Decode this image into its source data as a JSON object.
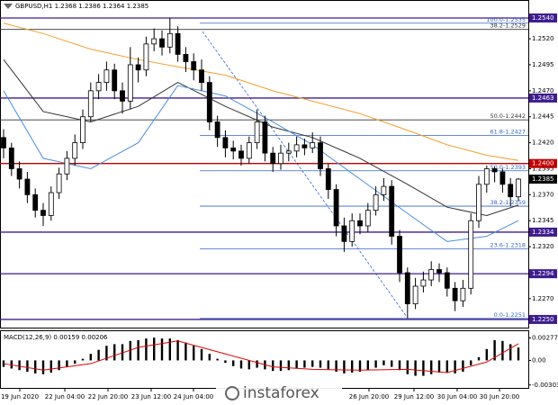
{
  "chart_data": [
    {
      "type": "candlestick",
      "title": "GBPUSD,H1  1.2368 1.2386 1.2364 1.2385",
      "open": [
        1.2425,
        1.2415,
        1.2395,
        1.2385,
        1.237,
        1.2355,
        1.235,
        1.2372,
        1.239,
        1.2405,
        1.242,
        1.2445,
        1.247,
        1.2478,
        1.249,
        1.247,
        1.246,
        1.2495,
        1.249,
        1.2515,
        1.252,
        1.2512,
        1.2525,
        1.2505,
        1.2498,
        1.249,
        1.2478,
        1.244,
        1.2425,
        1.2415,
        1.2412,
        1.2405,
        1.242,
        1.244,
        1.241,
        1.24,
        1.241,
        1.2412,
        1.2418,
        1.2415,
        1.242,
        1.2395,
        1.2375,
        1.234,
        1.2325,
        1.2345,
        1.234,
        1.2355,
        1.237,
        1.2378,
        1.233,
        1.2295,
        1.2265,
        1.2282,
        1.2288,
        1.2298,
        1.2295,
        1.228,
        1.2268,
        1.228,
        1.2345,
        1.238,
        1.2395,
        1.2392,
        1.238,
        1.2368
      ],
      "high": [
        1.2433,
        1.242,
        1.2402,
        1.2392,
        1.2376,
        1.2362,
        1.2378,
        1.2396,
        1.2412,
        1.2428,
        1.2452,
        1.2478,
        1.2486,
        1.2498,
        1.2496,
        1.2478,
        1.2512,
        1.2502,
        1.2522,
        1.253,
        1.2528,
        1.254,
        1.2532,
        1.2512,
        1.2506,
        1.25,
        1.2484,
        1.2446,
        1.2432,
        1.2422,
        1.2418,
        1.2426,
        1.2452,
        1.2446,
        1.2416,
        1.2418,
        1.242,
        1.2426,
        1.2424,
        1.243,
        1.2426,
        1.24,
        1.238,
        1.2348,
        1.2352,
        1.2352,
        1.2362,
        1.2378,
        1.2386,
        1.2384,
        1.2336,
        1.23,
        1.229,
        1.2296,
        1.2306,
        1.2304,
        1.23,
        1.2286,
        1.2288,
        1.2352,
        1.2388,
        1.2398,
        1.2397,
        1.2395,
        1.2386,
        1.2386
      ],
      "low": [
        1.2405,
        1.2388,
        1.2376,
        1.2362,
        1.2348,
        1.234,
        1.2345,
        1.2366,
        1.2384,
        1.2398,
        1.2414,
        1.244,
        1.2462,
        1.247,
        1.2462,
        1.2448,
        1.2452,
        1.2478,
        1.2484,
        1.2508,
        1.2504,
        1.2506,
        1.2498,
        1.2488,
        1.248,
        1.247,
        1.2432,
        1.2416,
        1.2406,
        1.2404,
        1.2398,
        1.24,
        1.2414,
        1.2402,
        1.2392,
        1.2394,
        1.2402,
        1.2406,
        1.2408,
        1.241,
        1.2388,
        1.2366,
        1.233,
        1.2315,
        1.232,
        1.2332,
        1.2334,
        1.235,
        1.2364,
        1.2322,
        1.2286,
        1.2251,
        1.226,
        1.2276,
        1.2282,
        1.2286,
        1.2272,
        1.2258,
        1.2262,
        1.2274,
        1.2338,
        1.2372,
        1.2382,
        1.2372,
        1.2359,
        1.2364
      ],
      "close": [
        1.2415,
        1.2395,
        1.2385,
        1.237,
        1.2355,
        1.235,
        1.2372,
        1.239,
        1.2405,
        1.242,
        1.2445,
        1.247,
        1.2478,
        1.249,
        1.247,
        1.246,
        1.2495,
        1.249,
        1.2515,
        1.252,
        1.2512,
        1.2525,
        1.2505,
        1.2498,
        1.249,
        1.2478,
        1.244,
        1.2425,
        1.2415,
        1.2412,
        1.2405,
        1.242,
        1.244,
        1.241,
        1.24,
        1.241,
        1.2412,
        1.2418,
        1.2415,
        1.242,
        1.2395,
        1.2375,
        1.234,
        1.2325,
        1.2345,
        1.234,
        1.2355,
        1.237,
        1.2378,
        1.233,
        1.2295,
        1.2265,
        1.2282,
        1.2288,
        1.2298,
        1.2295,
        1.228,
        1.2268,
        1.228,
        1.2345,
        1.238,
        1.2395,
        1.2392,
        1.238,
        1.2368,
        1.2385
      ],
      "up_color": "#ffffff",
      "down_color": "#000000",
      "series": [
        {
          "color": "#f0a030",
          "x": [
            0,
            5,
            11,
            17,
            22,
            28,
            34,
            39,
            45,
            51,
            56,
            61,
            65
          ],
          "values": [
            1.2535,
            1.2525,
            1.251,
            1.25,
            1.2493,
            1.2485,
            1.247,
            1.246,
            1.2448,
            1.2432,
            1.2418,
            1.2408,
            1.2403
          ]
        },
        {
          "color": "#333333",
          "x": [
            0,
            5,
            11,
            17,
            22,
            28,
            34,
            39,
            45,
            51,
            56,
            61,
            65
          ],
          "values": [
            1.25,
            1.245,
            1.244,
            1.2455,
            1.2478,
            1.2455,
            1.2435,
            1.2425,
            1.2405,
            1.238,
            1.2358,
            1.235,
            1.236
          ]
        },
        {
          "color": "#4a8ee0",
          "x": [
            0,
            5,
            11,
            17,
            22,
            28,
            34,
            39,
            45,
            51,
            56,
            61,
            65
          ],
          "values": [
            1.247,
            1.2405,
            1.2395,
            1.242,
            1.2475,
            1.2465,
            1.244,
            1.2418,
            1.2385,
            1.2352,
            1.2325,
            1.233,
            1.2345
          ]
        }
      ],
      "ylim": [
        1.22413,
        1.25573
      ],
      "yticks": [
        {
          "value": 1.252,
          "label": "1.2520"
        },
        {
          "value": 1.2495,
          "label": "1.2495"
        },
        {
          "value": 1.247,
          "label": "1.2470"
        },
        {
          "value": 1.2445,
          "label": "1.2445"
        },
        {
          "value": 1.242,
          "label": "1.2420"
        },
        {
          "value": 1.2395,
          "label": "1.2395"
        },
        {
          "value": 1.237,
          "label": "1.2370"
        },
        {
          "value": 1.2345,
          "label": "1.2345"
        },
        {
          "value": 1.232,
          "label": "1.2320"
        },
        {
          "value": 1.227,
          "label": "1.2270"
        }
      ],
      "levels": [
        {
          "value": 1.254,
          "label": "1.2540",
          "color": "#3f1d8f"
        },
        {
          "value": 1.2463,
          "label": "1.2463",
          "color": "#3f1d8f"
        },
        {
          "value": 1.24,
          "label": "1.2400",
          "color": "#c00000"
        },
        {
          "value": 1.2334,
          "label": "1.2334",
          "color": "#3f1d8f"
        },
        {
          "value": 1.2294,
          "label": "1.2294",
          "color": "#3f1d8f"
        },
        {
          "value": 1.225,
          "label": "1.2250",
          "color": "#3f1d8f"
        }
      ],
      "current_price": {
        "value": 1.2385,
        "label": "1.2385",
        "color": "#000000"
      },
      "fib_levels": [
        {
          "value": 1.2535,
          "label": "100.0-1.2535",
          "color": "#3366cc"
        },
        {
          "value": 1.2529,
          "label": "38.2-1.2529",
          "color": "#333333"
        },
        {
          "value": 1.2442,
          "label": "50.0-1.2442",
          "color": "#333333"
        },
        {
          "value": 1.2427,
          "label": "61.8-1.2427",
          "color": "#3366cc"
        },
        {
          "value": 1.2393,
          "label": "50.0-1.2393",
          "color": "#3366cc"
        },
        {
          "value": 1.2359,
          "label": "38.2-1.2359",
          "color": "#3366cc"
        },
        {
          "value": 1.2318,
          "label": "23.6-1.2318",
          "color": "#3366cc"
        },
        {
          "value": 1.2251,
          "label": "0.0-1.2251",
          "color": "#3366cc"
        }
      ],
      "x_labels": [
        "19 Jun 2020",
        "22 Jun 04:00",
        "22 Jun 20:00",
        "23 Jun 12:00",
        "24 Jun 04:00",
        "26 Jun 20:00",
        "29 Jun 12:00",
        "30 Jun 04:00",
        "30 Jun 20:00"
      ]
    },
    {
      "type": "macd",
      "title": "MACD(12,26,9) 0.00159 0.00206",
      "color": "#000000",
      "values": [
        -0.0008,
        -0.001,
        -0.0012,
        -0.0014,
        -0.0016,
        -0.0017,
        -0.0015,
        -0.0012,
        -0.0008,
        -0.0004,
        0.0002,
        0.0008,
        0.0013,
        0.0018,
        0.002,
        0.002,
        0.0024,
        0.0025,
        0.0027,
        0.0028,
        0.0027,
        0.0027,
        0.0025,
        0.0022,
        0.0018,
        0.0014,
        0.0008,
        0.0002,
        -0.0003,
        -0.0007,
        -0.001,
        -0.0011,
        -0.0009,
        -0.0011,
        -0.0013,
        -0.0013,
        -0.0012,
        -0.001,
        -0.0009,
        -0.0008,
        -0.0009,
        -0.0011,
        -0.0014,
        -0.0016,
        -0.0015,
        -0.0014,
        -0.0012,
        -0.0009,
        -0.0006,
        -0.0008,
        -0.0012,
        -0.0017,
        -0.0019,
        -0.0019,
        -0.0017,
        -0.0015,
        -0.0015,
        -0.0016,
        -0.0014,
        -0.0006,
        0.0004,
        0.0014,
        0.0025,
        0.0024,
        0.002,
        0.00159
      ],
      "signal": {
        "color": "#e00000",
        "x": [
          0,
          5,
          11,
          17,
          22,
          28,
          34,
          39,
          45,
          51,
          56,
          61,
          65
        ],
        "values": [
          -0.0004,
          -0.0012,
          -0.0004,
          0.0016,
          0.0024,
          0.0008,
          -0.0008,
          -0.0011,
          -0.0012,
          -0.0011,
          -0.0015,
          -0.0002,
          0.00206
        ]
      },
      "ylim": [
        -0.0035,
        0.0036
      ],
      "yticks": [
        0.00277,
        {
          "value": 0,
          "label": "0.00"
        },
        -0.00303
      ]
    }
  ],
  "watermark": "instaforex"
}
